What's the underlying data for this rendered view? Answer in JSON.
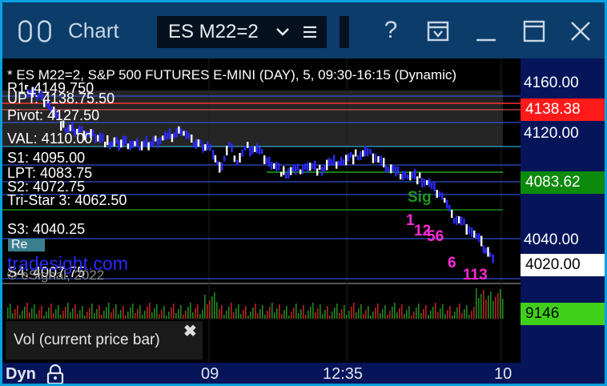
{
  "titlebar": {
    "title": "Chart",
    "symbol": "ES M22=2",
    "help_glyph": "?",
    "icons": [
      "windows-icon",
      "chevron-down-icon",
      "menu-icon",
      "help-icon",
      "dock-icon",
      "minimize-icon",
      "maximize-icon",
      "close-icon"
    ]
  },
  "chart": {
    "header": "* ES M22=2, S&P 500 FUTURES E-MINI (DAY), 5, 09:30-16:15 (Dynamic)",
    "levels": [
      {
        "label": "R1: 4149.750"
      },
      {
        "label": "UPT: 4138.75.50"
      },
      {
        "label": "Pivot: 4127.50"
      },
      {
        "label": "VAL: 4110.00"
      },
      {
        "label": "S1: 4095.00"
      },
      {
        "label": "LPT: 4083.75"
      },
      {
        "label": "S2: 4072.75"
      },
      {
        "label": "Tri-Star 3: 4062.50"
      },
      {
        "label": "S3: 4040.25"
      },
      {
        "label": "S4: 4007.75"
      }
    ],
    "tag_label": "Re",
    "watermark_link": "tradesight.com",
    "watermark_copy": "© eSignal, 2022",
    "annotations": {
      "green_sig": "Sig",
      "magenta_1": "1",
      "magenta_12": "12",
      "magenta_56": "56",
      "magenta_6": "6",
      "magenta_113": "113"
    }
  },
  "price_axis": {
    "ticks": [
      "4160.00",
      "4120.00",
      "4040.00"
    ],
    "upper_box": {
      "value": "4138.38",
      "color": "#ff1a1a"
    },
    "mid_box": {
      "value": "4083.62",
      "color": "#0c8a0c"
    },
    "last_box": {
      "value": "4020.00",
      "color": "#ffffff"
    },
    "volume_box": {
      "value": "9146",
      "color": "#3fd11a"
    }
  },
  "volume_tooltip": {
    "text": "Vol (current price bar)",
    "close_glyph": "✖"
  },
  "time_axis": {
    "mode": "Dyn",
    "labels": [
      "09",
      "12:35",
      "10"
    ]
  },
  "colors": {
    "title_bg": "#0b3c6a",
    "price_col_bg": "#06155a",
    "candle": "#2a2aff",
    "annotation_magenta": "#ff2bd6",
    "annotation_green": "#1c9a1c"
  }
}
